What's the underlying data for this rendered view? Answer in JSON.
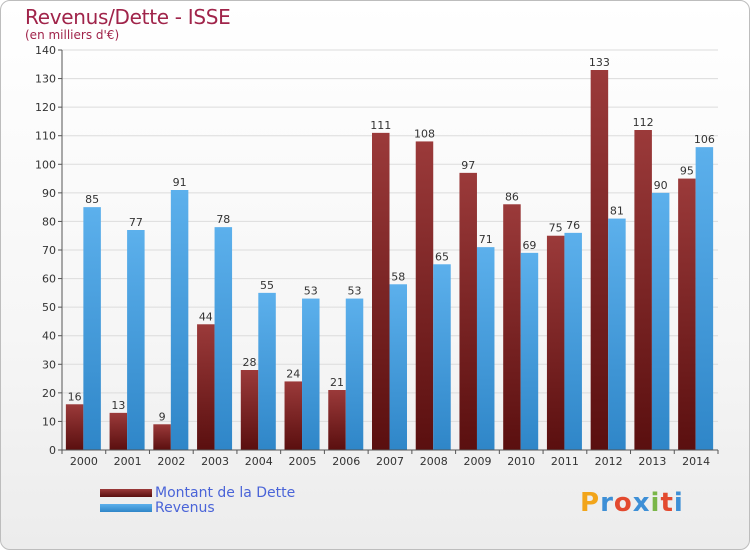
{
  "title": "Revenus/Dette - ISSE",
  "subtitle": "(en milliers d'€)",
  "logo": {
    "text": "Proxiti",
    "colors": [
      "#f2a51a",
      "#3d8fd6",
      "#e34a2f",
      "#3d8fd6",
      "#7ab648",
      "#e34a2f",
      "#3d8fd6"
    ]
  },
  "chart_data": {
    "type": "bar",
    "categories": [
      "2000",
      "2001",
      "2002",
      "2003",
      "2004",
      "2005",
      "2006",
      "2007",
      "2008",
      "2009",
      "2010",
      "2011",
      "2012",
      "2013",
      "2014"
    ],
    "series": [
      {
        "name": "Montant de la Dette",
        "color": "#7a1a1a",
        "values": [
          16,
          13,
          9,
          44,
          28,
          24,
          21,
          111,
          108,
          97,
          86,
          75,
          133,
          112,
          95
        ]
      },
      {
        "name": "Revenus",
        "color": "#4aa2e0",
        "values": [
          85,
          77,
          91,
          78,
          55,
          53,
          53,
          58,
          65,
          71,
          69,
          76,
          81,
          90,
          106
        ]
      }
    ],
    "ylim": [
      0,
      140
    ],
    "yticks": [
      0,
      10,
      20,
      30,
      40,
      50,
      60,
      70,
      80,
      90,
      100,
      110,
      120,
      130,
      140
    ],
    "grid": true,
    "legend_position": "bottom-left"
  }
}
